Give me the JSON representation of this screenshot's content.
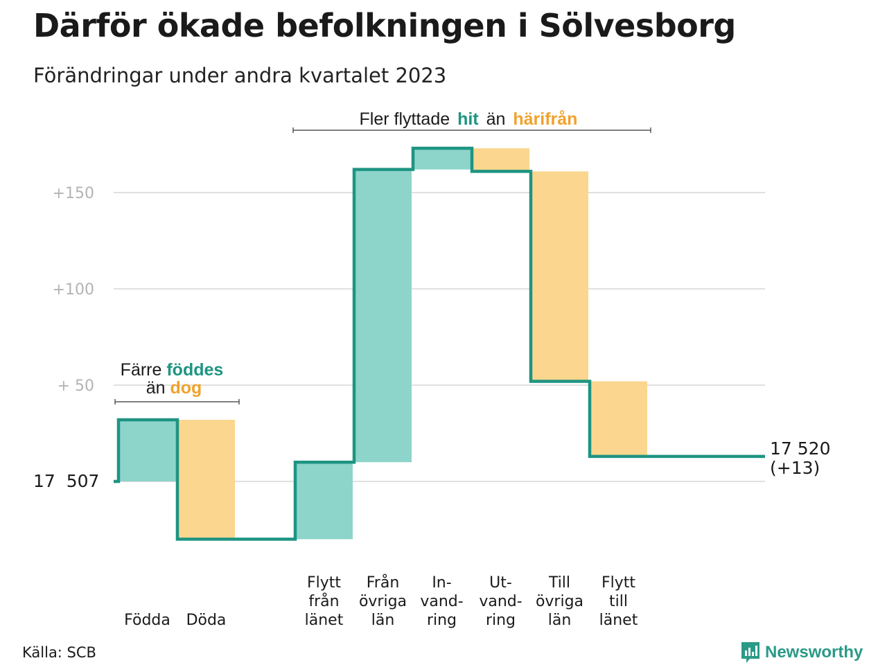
{
  "title": "Därför ökade befolkningen i Sölvesborg",
  "subtitle": "Förändringar under andra kvartalet 2023",
  "source": "Källa: SCB",
  "brand": "Newsworthy",
  "colors": {
    "increase": "#8dd4cb",
    "decrease": "#fad68f",
    "line": "#1e9482",
    "accent_teal": "#1e9482",
    "accent_orange": "#f0a22e",
    "grid": "#e0e0e0"
  },
  "annotations": {
    "births": {
      "line1_prefix": "Färre",
      "line1_highlight": "föddes",
      "line2_prefix": "än",
      "line2_highlight": "dog"
    },
    "moves": {
      "prefix": "Fler flyttade",
      "highlight1": "hit",
      "middle": "än",
      "highlight2": "härifrån"
    }
  },
  "end_label": {
    "total": "17 520",
    "change": "(+13)"
  },
  "chart_data": {
    "type": "waterfall",
    "base_label": "17  507",
    "start_value": 17507,
    "end_value": 17520,
    "ylim": [
      -30,
      180
    ],
    "yticks": [
      {
        "value": 50,
        "label": "+  50"
      },
      {
        "value": 100,
        "label": "+100"
      },
      {
        "value": 150,
        "label": "+150"
      }
    ],
    "grid": true,
    "steps": [
      {
        "label": [
          "Födda"
        ],
        "value": 32
      },
      {
        "label": [
          "Döda"
        ],
        "value": -62
      },
      {
        "label": [],
        "value": 0
      },
      {
        "label": [
          "Flytt",
          "från",
          "länet"
        ],
        "value": 40
      },
      {
        "label": [
          "Från",
          "övriga",
          "län"
        ],
        "value": 152
      },
      {
        "label": [
          "In-",
          "vand-",
          "ring"
        ],
        "value": 11
      },
      {
        "label": [
          "Ut-",
          "vand-",
          "ring"
        ],
        "value": -12
      },
      {
        "label": [
          "Till",
          "övriga",
          "län"
        ],
        "value": -109
      },
      {
        "label": [
          "Flytt",
          "till",
          "länet"
        ],
        "value": -39
      }
    ]
  }
}
